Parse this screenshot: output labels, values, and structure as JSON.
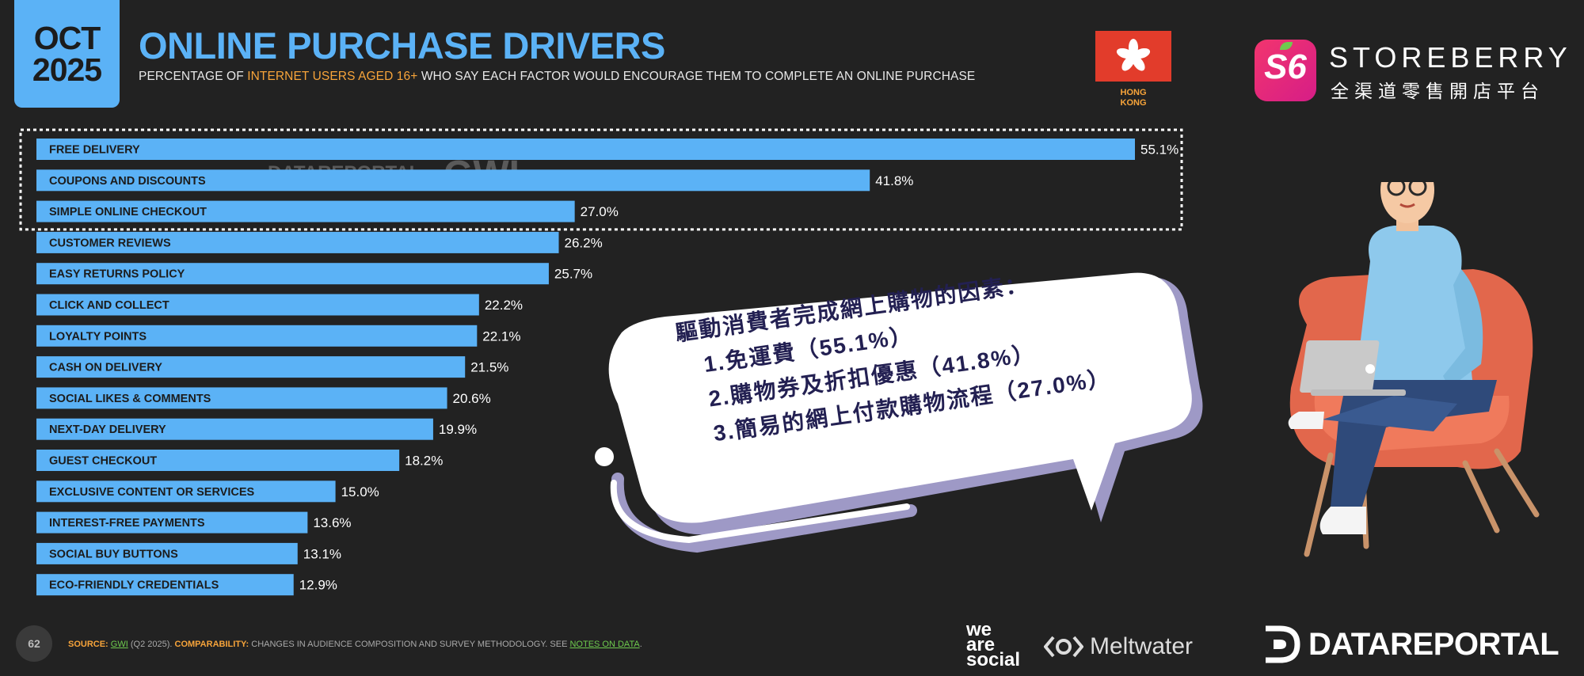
{
  "header": {
    "month": "OCT",
    "year": "2025",
    "title": "ONLINE PURCHASE DRIVERS",
    "subtitle_pre": "PERCENTAGE OF ",
    "subtitle_highlight": "INTERNET USERS AGED 16+",
    "subtitle_post": " WHO SAY EACH FACTOR WOULD ENCOURAGE THEM TO COMPLETE AN ONLINE PURCHASE",
    "country_line1": "HONG",
    "country_line2": "KONG"
  },
  "brand": {
    "logo_letters": "S6",
    "name": "STOREBERRY",
    "tagline": "全渠道零售開店平台"
  },
  "chart_data": {
    "type": "bar",
    "orientation": "horizontal",
    "title": "ONLINE PURCHASE DRIVERS",
    "xlim": [
      0,
      55.1
    ],
    "bar_color": "#5bb2f6",
    "categories": [
      "FREE DELIVERY",
      "COUPONS AND DISCOUNTS",
      "SIMPLE ONLINE CHECKOUT",
      "CUSTOMER REVIEWS",
      "EASY RETURNS POLICY",
      "CLICK AND COLLECT",
      "LOYALTY POINTS",
      "CASH ON DELIVERY",
      "SOCIAL LIKES & COMMENTS",
      "NEXT-DAY DELIVERY",
      "GUEST CHECKOUT",
      "EXCLUSIVE CONTENT OR SERVICES",
      "INTEREST-FREE PAYMENTS",
      "SOCIAL BUY BUTTONS",
      "ECO-FRIENDLY CREDENTIALS"
    ],
    "values": [
      55.1,
      41.8,
      27.0,
      26.2,
      25.7,
      22.2,
      22.1,
      21.5,
      20.6,
      19.9,
      18.2,
      15.0,
      13.6,
      13.1,
      12.9
    ],
    "value_labels": [
      "55.1%",
      "41.8%",
      "27.0%",
      "26.2%",
      "25.7%",
      "22.2%",
      "22.1%",
      "21.5%",
      "20.6%",
      "19.9%",
      "18.2%",
      "15.0%",
      "13.6%",
      "13.1%",
      "12.9%"
    ],
    "highlighted_top": 3
  },
  "watermark": {
    "text1": "DATAREPORTAL",
    "text2": "GWI."
  },
  "callout": {
    "heading": "驅動消費者完成網上購物的因素：",
    "line1": "1.免運費（55.1%）",
    "line2": "2.購物券及折扣優惠（41.8%）",
    "line3": "3.簡易的網上付款購物流程（27.0%）"
  },
  "footer": {
    "page": "62",
    "source_label": "SOURCE:",
    "source_link": "GWI",
    "source_text": " (Q2 2025). ",
    "comparability_label": "COMPARABILITY:",
    "comparability_text": " CHANGES IN AUDIENCE COMPOSITION AND SURVEY METHODOLOGY. SEE ",
    "notes_link": "NOTES ON DATA",
    "period": ".",
    "we": "we",
    "are": "are",
    "social": "social",
    "meltwater": "Meltwater",
    "datareportal": "DATAREPORTAL"
  }
}
